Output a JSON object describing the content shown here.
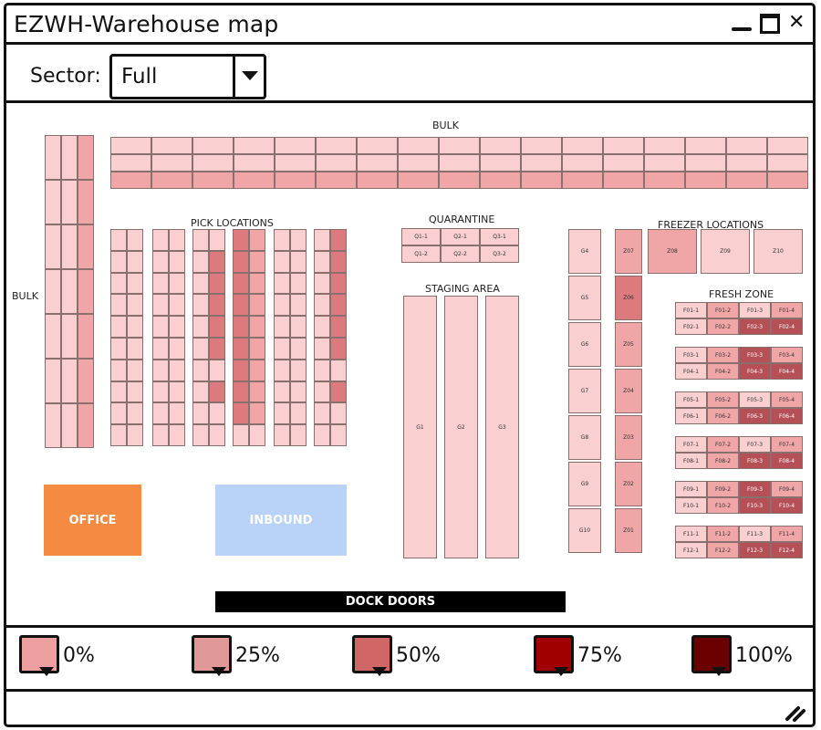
{
  "window": {
    "title": "EZWH-Warehouse map"
  },
  "toolbar": {
    "sector_label": "Sector:",
    "sector_value": "Full"
  },
  "map": {
    "labels": {
      "bulk_top": "BULK",
      "bulk_left": "BULK",
      "pick": "PICK LOCATIONS",
      "quarantine": "QUARANTINE",
      "staging": "STAGING AREA",
      "freezer": "FREEZER LOCATIONS",
      "fresh": "FRESH ZONE",
      "office": "OFFICE",
      "inbound": "INBOUND",
      "dock": "DOCK DOORS"
    },
    "colors": {
      "office": "#f58a42",
      "inbound": "#b8d3f7",
      "dock": "#000000",
      "lvl0": "#f9cfcf",
      "lvl25": "#f0a5a7",
      "lvl50": "#dd7a7d",
      "lvl75": "#b65057"
    },
    "quarantine": [
      [
        "Q1-1",
        "Q2-1",
        "Q3-1"
      ],
      [
        "Q1-2",
        "Q2-2",
        "Q3-2"
      ]
    ],
    "staging": [
      "G1",
      "G2",
      "G3"
    ],
    "gate_col": [
      "G4",
      "G5",
      "G6",
      "G7",
      "G8",
      "G9",
      "G10"
    ],
    "z_col": [
      "Z07",
      "Z06",
      "Z05",
      "Z04",
      "Z03",
      "Z02",
      "Z01"
    ],
    "freezer": [
      "Z08",
      "Z09",
      "Z10"
    ]
  },
  "legend": [
    {
      "label": "0%",
      "color": "#ee9f9f"
    },
    {
      "label": "25%",
      "color": "#e09898"
    },
    {
      "label": "50%",
      "color": "#d06666"
    },
    {
      "label": "75%",
      "color": "#a00000"
    },
    {
      "label": "100%",
      "color": "#6a0000"
    }
  ]
}
